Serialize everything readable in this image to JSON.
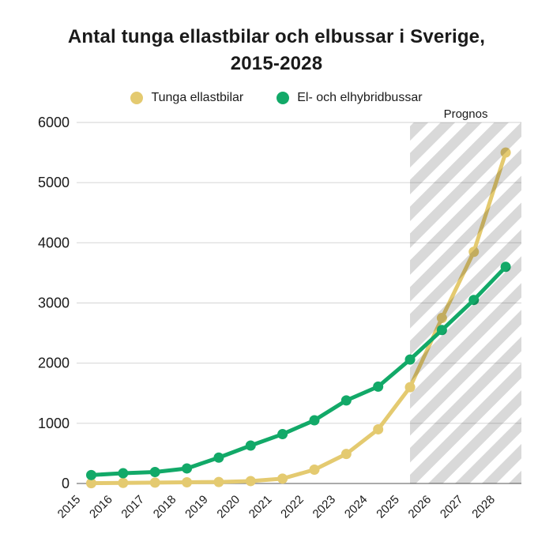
{
  "title": {
    "line1": "Antal tunga ellastbilar och elbussar i Sverige,",
    "line2": "2015-2028"
  },
  "legend": {
    "items": [
      {
        "label": "Tunga ellastbilar",
        "color": "#e4ca70"
      },
      {
        "label": "El- och elhybridbussar",
        "color": "#12a968"
      }
    ]
  },
  "forecast": {
    "label": "Prognos",
    "start_year": 2025
  },
  "chart_data": {
    "type": "line",
    "title": "Antal tunga ellastbilar och elbussar i Sverige, 2015-2028",
    "x": [
      2015,
      2016,
      2017,
      2018,
      2019,
      2020,
      2021,
      2022,
      2023,
      2024,
      2025,
      2026,
      2027,
      2028
    ],
    "series": [
      {
        "name": "Tunga ellastbilar",
        "color": "#e4ca70",
        "values": [
          5,
          10,
          15,
          20,
          25,
          40,
          80,
          230,
          490,
          900,
          1600,
          2750,
          3850,
          5500
        ]
      },
      {
        "name": "El- och elhybridbussar",
        "color": "#12a968",
        "values": [
          140,
          170,
          190,
          250,
          430,
          630,
          820,
          1050,
          1380,
          1610,
          2060,
          2550,
          3050,
          3600
        ]
      }
    ],
    "xlabel": "",
    "ylabel": "",
    "ylim": [
      0,
      6000
    ],
    "ytick_step": 1000,
    "y_ticks": [
      0,
      1000,
      2000,
      3000,
      4000,
      5000,
      6000
    ],
    "grid": true,
    "legend_position": "top",
    "forecast_start_x": 2025,
    "forecast_label": "Prognos",
    "forecast_hatch": true,
    "colors": {
      "grid": "#dadada",
      "zero_axis": "#8f8f8f",
      "hatch": "rgba(0,0,0,0.15)",
      "text": "#1a1a1a"
    }
  }
}
